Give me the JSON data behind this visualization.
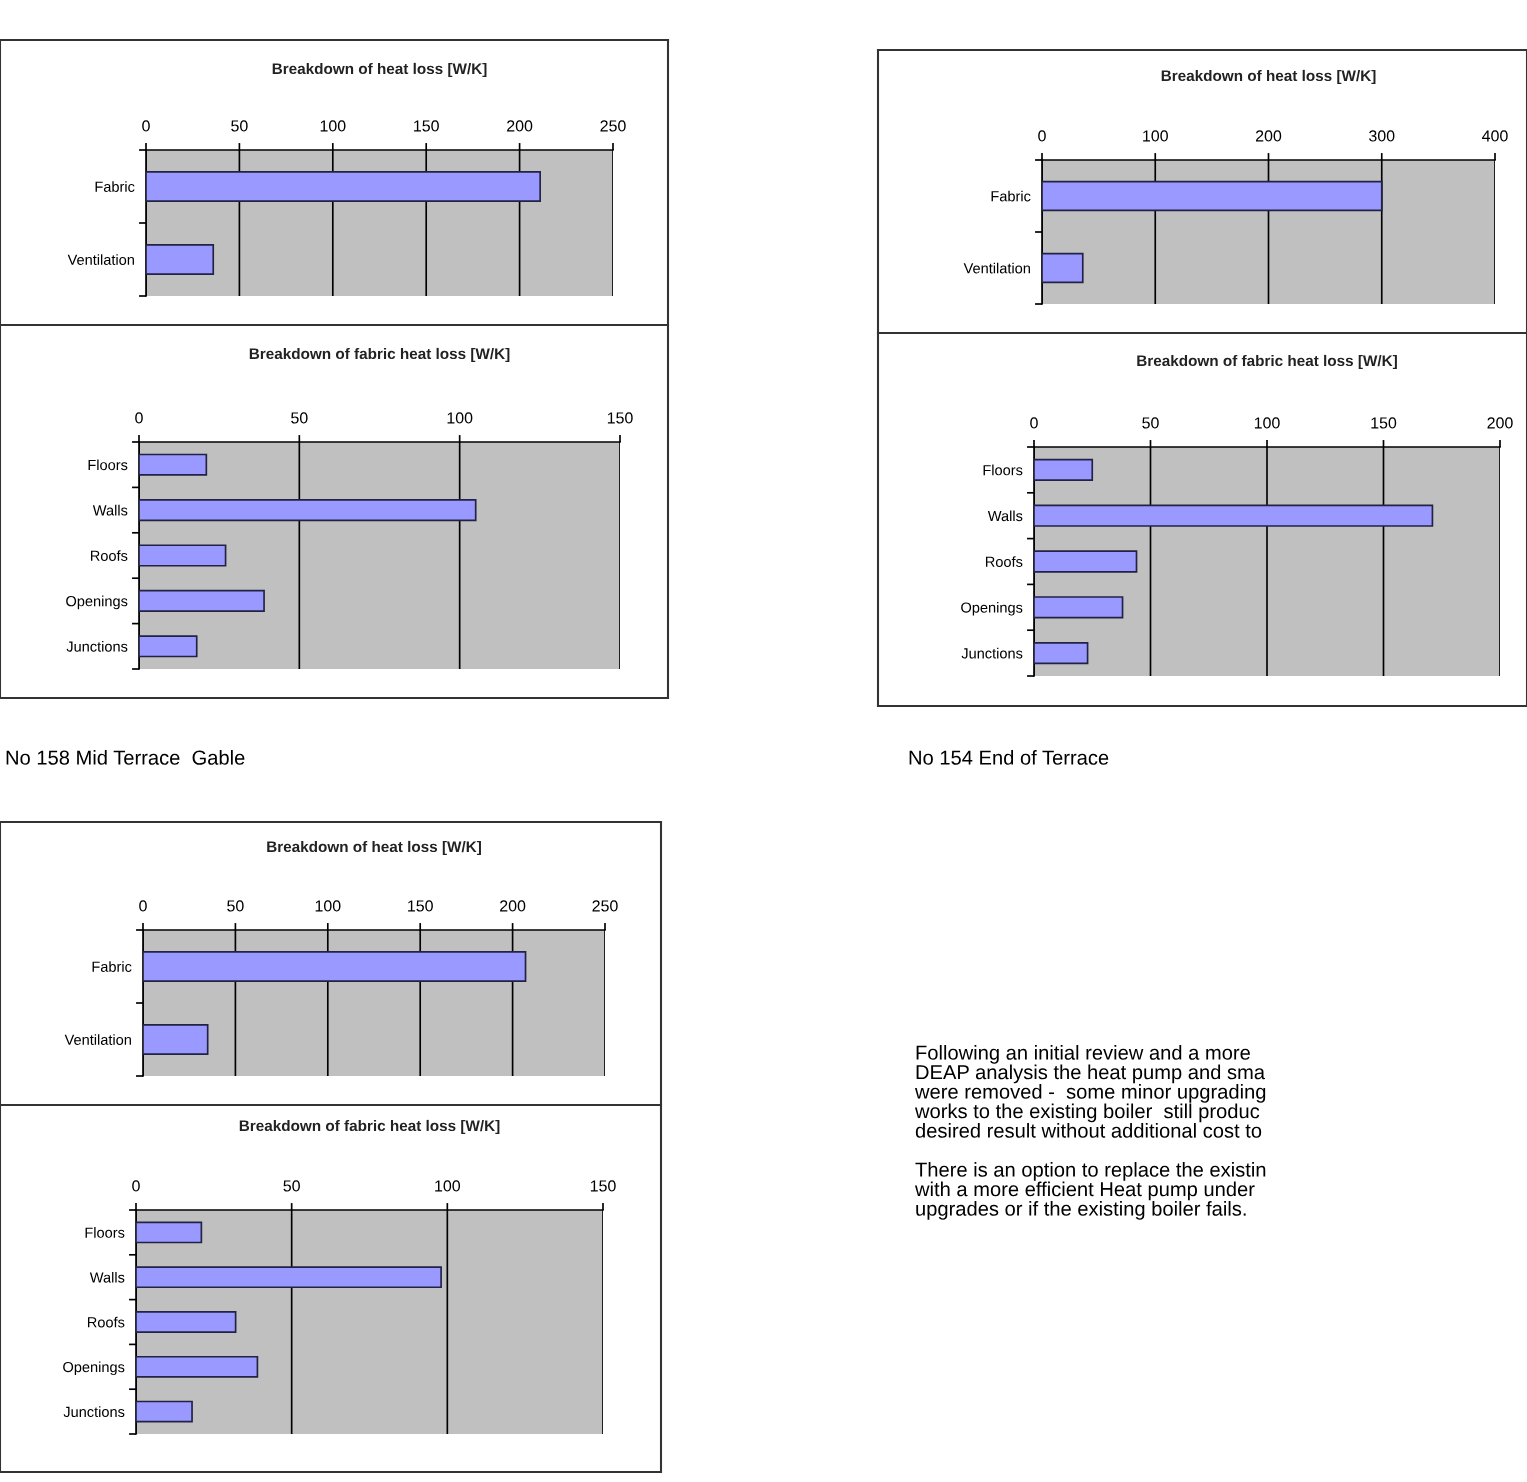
{
  "chart_data": [
    {
      "type": "bar",
      "orientation": "horizontal",
      "title": "Breakdown of heat loss [W/K]",
      "categories": [
        "Fabric",
        "Ventilation"
      ],
      "values": [
        211,
        36
      ],
      "color": "#9999ff",
      "xlim": [
        0,
        250
      ],
      "xticks": [
        0,
        50,
        100,
        150,
        200,
        250
      ],
      "grid": "x"
    },
    {
      "type": "bar",
      "orientation": "horizontal",
      "title": "Breakdown of fabric heat loss [W/K]",
      "categories": [
        "Floors",
        "Walls",
        "Roofs",
        "Openings",
        "Junctions"
      ],
      "values": [
        21,
        105,
        27,
        39,
        18
      ],
      "color": "#9999ff",
      "xlim": [
        0,
        150
      ],
      "xticks": [
        0,
        50,
        100,
        150
      ],
      "grid": "x",
      "annotations": [
        "No 158 Mid Terrace  Gable"
      ]
    },
    {
      "type": "bar",
      "orientation": "horizontal",
      "title": "Breakdown of heat loss [W/K]",
      "categories": [
        "Fabric",
        "Ventilation"
      ],
      "values": [
        300,
        36
      ],
      "color": "#9999ff",
      "xlim": [
        0,
        400
      ],
      "xticks": [
        0,
        100,
        200,
        300,
        400
      ],
      "grid": "x"
    },
    {
      "type": "bar",
      "orientation": "horizontal",
      "title": "Breakdown of fabric heat loss [W/K]",
      "categories": [
        "Floors",
        "Walls",
        "Roofs",
        "Openings",
        "Junctions"
      ],
      "values": [
        25,
        171,
        44,
        38,
        23
      ],
      "color": "#9999ff",
      "xlim": [
        0,
        200
      ],
      "xticks": [
        0,
        50,
        100,
        150,
        200
      ],
      "grid": "x",
      "annotations": [
        "No 154 End of Terrace"
      ]
    },
    {
      "type": "bar",
      "orientation": "horizontal",
      "title": "Breakdown of heat loss [W/K]",
      "categories": [
        "Fabric",
        "Ventilation"
      ],
      "values": [
        207,
        35
      ],
      "color": "#9999ff",
      "xlim": [
        0,
        250
      ],
      "xticks": [
        0,
        50,
        100,
        150,
        200,
        250
      ],
      "grid": "x"
    },
    {
      "type": "bar",
      "orientation": "horizontal",
      "title": "Breakdown of fabric heat loss [W/K]",
      "categories": [
        "Floors",
        "Walls",
        "Roofs",
        "Openings",
        "Junctions"
      ],
      "values": [
        21,
        98,
        32,
        39,
        18
      ],
      "color": "#9999ff",
      "xlim": [
        0,
        150
      ],
      "xticks": [
        0,
        50,
        100,
        150
      ],
      "grid": "x",
      "annotations": [
        "Following an initial review and a more\nDEAP analysis the heat pump and sma\nwere removed -  some minor upgrading\nworks to the existing boiler  still produc\ndesired result without additional cost to\n\nThere is an option to replace the existin\nwith a more efficient Heat pump under\nupgrades or if the existing boiler fails."
      ]
    }
  ]
}
